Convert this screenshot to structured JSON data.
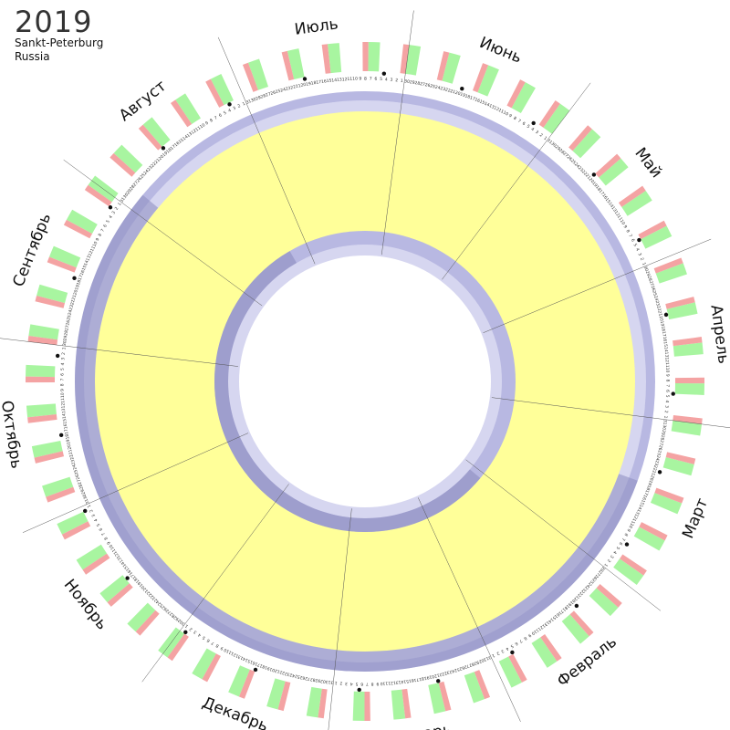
{
  "header": {
    "year": "2019",
    "city": "Sankt-Peterburg",
    "country": "Russia"
  },
  "months": [
    {
      "name": "Январь",
      "days": 31
    },
    {
      "name": "Февраль",
      "days": 28
    },
    {
      "name": "Март",
      "days": 31
    },
    {
      "name": "Апрель",
      "days": 30
    },
    {
      "name": "Май",
      "days": 31
    },
    {
      "name": "Июнь",
      "days": 30
    },
    {
      "name": "Июль",
      "days": 31
    },
    {
      "name": "Август",
      "days": 31
    },
    {
      "name": "Сентябрь",
      "days": 30
    },
    {
      "name": "Октябрь",
      "days": 31
    },
    {
      "name": "Ноябрь",
      "days": 30
    },
    {
      "name": "Декабрь",
      "days": 31
    }
  ],
  "first_weekday_jan1": 1,
  "colors": {
    "weekday_band": "#f4a3a3",
    "weekend_band": "#a8f5a0",
    "holiday_band": "#f4a3a3",
    "daylight": "#ffff99",
    "twilight_light": "#d6d6f0",
    "twilight_mid": "#b8b8e2",
    "night_dark": "#8c8cbf",
    "divider": "#555555"
  },
  "icons": {
    "moon_phase": "moon-phase-icon"
  }
}
